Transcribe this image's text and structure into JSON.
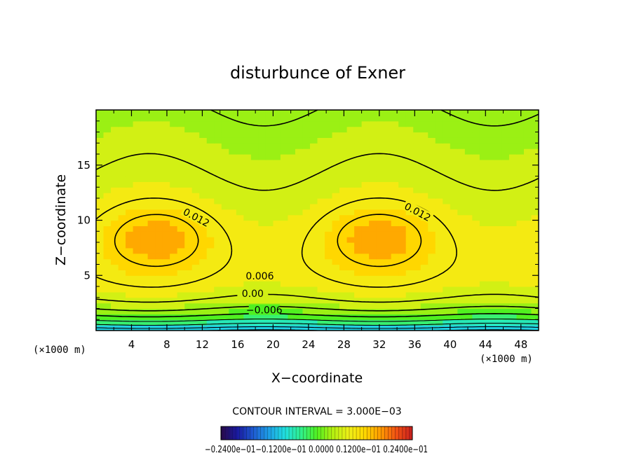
{
  "chart_data": {
    "type": "heatmap",
    "title": "disturbunce of Exner",
    "xlabel": "X−coordinate",
    "ylabel": "Z−coordinate",
    "x_unit": "(×1000 m)",
    "y_unit": "(×1000 m)",
    "xlim": [
      0,
      50
    ],
    "ylim": [
      0,
      20
    ],
    "x_ticks": [
      "4",
      "8",
      "12",
      "16",
      "20",
      "24",
      "28",
      "32",
      "36",
      "40",
      "44",
      "48"
    ],
    "y_ticks": [
      "5",
      "10",
      "15"
    ],
    "contour_interval_text": "CONTOUR INTERVAL = 3.000E−03",
    "contour_levels": [
      -0.012,
      -0.009,
      -0.006,
      -0.003,
      0.0,
      0.003,
      0.006,
      0.009,
      0.012
    ],
    "contour_labels": [
      "0.012",
      "0.012",
      "0.006",
      "0.00",
      "−0.006"
    ],
    "maxima": [
      {
        "x": 7,
        "z": 8.5,
        "value": 0.014
      },
      {
        "x": 32,
        "z": 8.5,
        "value": 0.014
      }
    ],
    "colorbar": {
      "range": [
        -0.024,
        0.024
      ],
      "tick_labels_overlapping": "−0.2400e−01−0.1200e−01  0.0000  0.1200e−01  0.2400e−01",
      "colors": [
        "#2a0a4a",
        "#1a1aa0",
        "#1e5ad2",
        "#1ea0e6",
        "#20e0e0",
        "#30ef8c",
        "#50f020",
        "#b4f010",
        "#f0f018",
        "#ffd700",
        "#ff9a00",
        "#f05014",
        "#c81e1e"
      ]
    }
  }
}
